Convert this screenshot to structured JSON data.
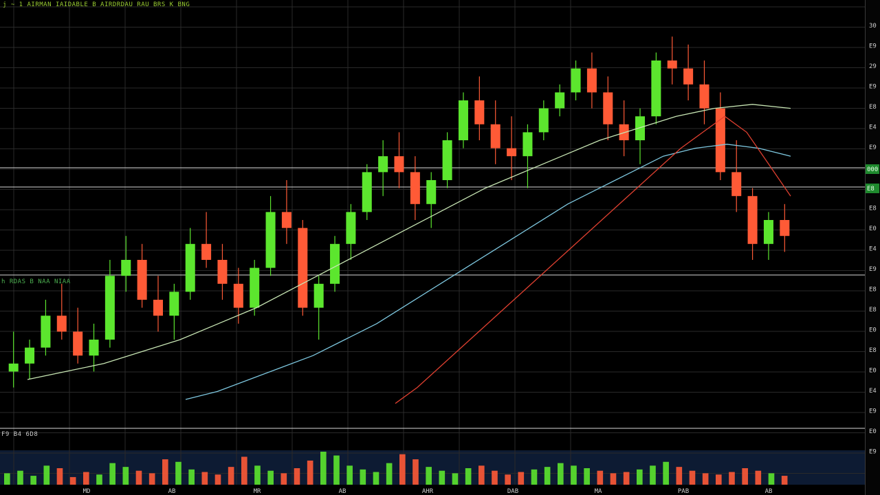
{
  "header": {
    "title": "j ~ 1 AIRMAN IAIDABLE B AIRDRDAU RAU BRS K BNG",
    "pane2_label": "h RDAS B NAA NIAA",
    "volume_label": "F9 B4 6D8"
  },
  "colors": {
    "background": "#000000",
    "grid": "#2a2a2a",
    "up_candle": "#5ce62e",
    "down_candle": "#ff5a36",
    "ma_fast": "#c8e6b4",
    "ma_mid": "#7ec8e0",
    "ma_slow": "#e04030",
    "volume_bg": "#0d1b33",
    "separator": "#d8d8d8"
  },
  "x_labels": [
    "MD",
    "AB",
    "MR",
    "AB",
    "AHR",
    "DAB",
    "MA",
    "PAB",
    "AB"
  ],
  "y_labels": [
    "30",
    "E9",
    "29",
    "E9",
    "E8",
    "E4",
    "E9",
    "E4",
    "E9",
    "E8",
    "E0",
    "E4",
    "E9",
    "E8",
    "E8",
    "E0",
    "E8",
    "E0",
    "E4",
    "E9",
    "E0",
    "E9"
  ],
  "price_flags": [
    "000",
    "E8"
  ],
  "chart_data": {
    "type": "candlestick",
    "title": "",
    "xlabel": "",
    "ylabel": "",
    "grid": true,
    "panes": [
      "price",
      "price",
      "price",
      "volume"
    ],
    "ylim": [
      0,
      100
    ],
    "series": [
      {
        "kind": "candles",
        "ohlc": [
          [
            12,
            22,
            8,
            14
          ],
          [
            14,
            20,
            10,
            18
          ],
          [
            18,
            30,
            16,
            26
          ],
          [
            26,
            34,
            20,
            22
          ],
          [
            22,
            28,
            14,
            16
          ],
          [
            16,
            24,
            12,
            20
          ],
          [
            20,
            40,
            18,
            36
          ],
          [
            36,
            46,
            32,
            40
          ],
          [
            40,
            44,
            28,
            30
          ],
          [
            30,
            36,
            22,
            26
          ],
          [
            26,
            34,
            20,
            32
          ],
          [
            32,
            48,
            30,
            44
          ],
          [
            44,
            52,
            38,
            40
          ],
          [
            40,
            44,
            30,
            34
          ],
          [
            34,
            38,
            24,
            28
          ],
          [
            28,
            40,
            26,
            38
          ],
          [
            38,
            56,
            36,
            52
          ],
          [
            52,
            60,
            44,
            48
          ],
          [
            48,
            50,
            26,
            28
          ],
          [
            28,
            36,
            20,
            34
          ],
          [
            34,
            46,
            32,
            44
          ],
          [
            44,
            54,
            40,
            52
          ],
          [
            52,
            64,
            50,
            62
          ],
          [
            62,
            70,
            56,
            66
          ],
          [
            66,
            72,
            58,
            62
          ],
          [
            62,
            66,
            50,
            54
          ],
          [
            54,
            62,
            48,
            60
          ],
          [
            60,
            72,
            58,
            70
          ],
          [
            70,
            82,
            68,
            80
          ],
          [
            80,
            86,
            70,
            74
          ],
          [
            74,
            80,
            64,
            68
          ],
          [
            68,
            76,
            60,
            66
          ],
          [
            66,
            74,
            58,
            72
          ],
          [
            72,
            80,
            70,
            78
          ],
          [
            78,
            84,
            76,
            82
          ],
          [
            82,
            90,
            80,
            88
          ],
          [
            88,
            92,
            78,
            82
          ],
          [
            82,
            86,
            70,
            74
          ],
          [
            74,
            80,
            66,
            70
          ],
          [
            70,
            78,
            64,
            76
          ],
          [
            76,
            92,
            74,
            90
          ],
          [
            90,
            96,
            84,
            88
          ],
          [
            88,
            94,
            80,
            84
          ],
          [
            84,
            90,
            74,
            78
          ],
          [
            78,
            82,
            60,
            62
          ],
          [
            62,
            70,
            52,
            56
          ],
          [
            56,
            58,
            40,
            44
          ],
          [
            44,
            52,
            40,
            50
          ],
          [
            50,
            54,
            42,
            46
          ]
        ]
      },
      {
        "name": "",
        "kind": "line",
        "values": [
          10,
          12,
          14,
          17,
          20,
          24,
          28,
          33,
          38,
          43,
          48,
          53,
          58,
          62,
          66,
          70,
          73,
          76,
          78,
          79,
          78
        ]
      },
      {
        "name": "",
        "kind": "line",
        "values": [
          5,
          7,
          10,
          13,
          16,
          20,
          24,
          29,
          34,
          39,
          44,
          49,
          54,
          58,
          62,
          66,
          68,
          69,
          68,
          66
        ]
      },
      {
        "name": "",
        "kind": "line",
        "values": [
          4,
          8,
          13,
          18,
          23,
          28,
          33,
          38,
          43,
          48,
          53,
          58,
          63,
          68,
          72,
          76,
          72,
          64,
          56
        ]
      }
    ],
    "volume": [
      18,
      22,
      14,
      30,
      26,
      12,
      20,
      16,
      34,
      28,
      22,
      18,
      40,
      36,
      24,
      20,
      16,
      28,
      44,
      30,
      22,
      18,
      26,
      38,
      52,
      46,
      30,
      24,
      20,
      34,
      48,
      40,
      28,
      22,
      18,
      26,
      30,
      22,
      16,
      20,
      24,
      28,
      34,
      30,
      26,
      22,
      18,
      20,
      24,
      30,
      36,
      28,
      22,
      18,
      16,
      20,
      26,
      22,
      18,
      14
    ]
  }
}
